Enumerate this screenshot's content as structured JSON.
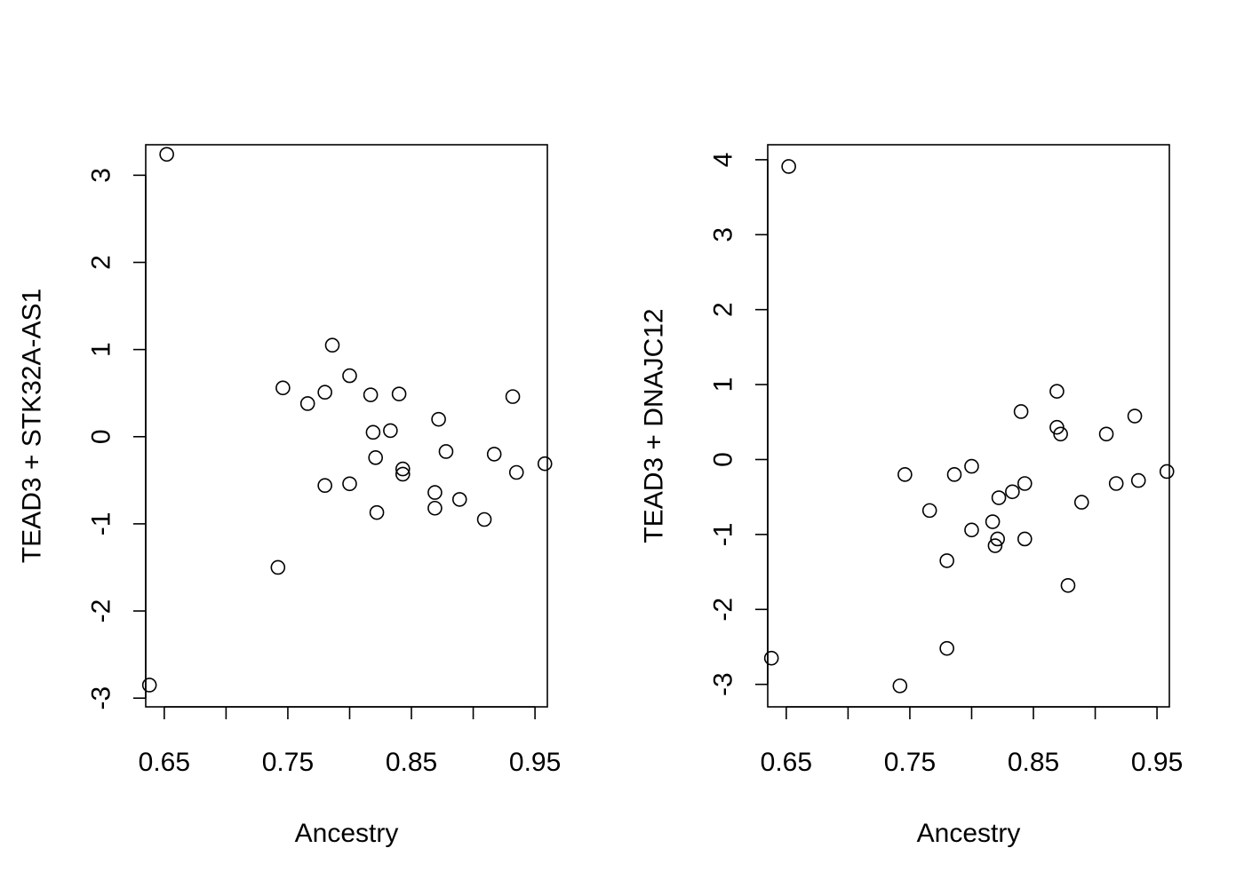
{
  "chart_data": [
    {
      "type": "scatter",
      "title": "",
      "xlabel": "Ancestry",
      "ylabel": "TEAD3 + STK32A-AS1",
      "xlim": [
        0.635,
        0.96
      ],
      "ylim": [
        -3.1,
        3.35
      ],
      "xticks": [
        0.65,
        0.7,
        0.75,
        0.8,
        0.85,
        0.9,
        0.95
      ],
      "xtick_labels": [
        "0.65",
        "",
        "0.75",
        "",
        "0.85",
        "",
        "0.95"
      ],
      "yticks": [
        -3,
        -2,
        -1,
        0,
        1,
        2,
        3
      ],
      "ytick_labels": [
        "-3",
        "-2",
        "-1",
        "0",
        "1",
        "2",
        "3"
      ],
      "grid": false,
      "points": [
        {
          "x": 0.638,
          "y": -2.85
        },
        {
          "x": 0.652,
          "y": 3.24
        },
        {
          "x": 0.742,
          "y": -1.5
        },
        {
          "x": 0.746,
          "y": 0.56
        },
        {
          "x": 0.766,
          "y": 0.38
        },
        {
          "x": 0.78,
          "y": 0.51
        },
        {
          "x": 0.78,
          "y": -0.56
        },
        {
          "x": 0.786,
          "y": 1.05
        },
        {
          "x": 0.8,
          "y": 0.7
        },
        {
          "x": 0.8,
          "y": -0.54
        },
        {
          "x": 0.817,
          "y": 0.48
        },
        {
          "x": 0.819,
          "y": 0.05
        },
        {
          "x": 0.821,
          "y": -0.24
        },
        {
          "x": 0.822,
          "y": -0.87
        },
        {
          "x": 0.833,
          "y": 0.07
        },
        {
          "x": 0.84,
          "y": 0.49
        },
        {
          "x": 0.843,
          "y": -0.37
        },
        {
          "x": 0.843,
          "y": -0.43
        },
        {
          "x": 0.869,
          "y": -0.64
        },
        {
          "x": 0.869,
          "y": -0.82
        },
        {
          "x": 0.872,
          "y": 0.2
        },
        {
          "x": 0.878,
          "y": -0.17
        },
        {
          "x": 0.889,
          "y": -0.72
        },
        {
          "x": 0.909,
          "y": -0.95
        },
        {
          "x": 0.917,
          "y": -0.2
        },
        {
          "x": 0.932,
          "y": 0.46
        },
        {
          "x": 0.935,
          "y": -0.41
        },
        {
          "x": 0.958,
          "y": -0.31
        }
      ]
    },
    {
      "type": "scatter",
      "title": "",
      "xlabel": "Ancestry",
      "ylabel": "TEAD3 + DNAJC12",
      "xlim": [
        0.635,
        0.96
      ],
      "ylim": [
        -3.3,
        4.2
      ],
      "xticks": [
        0.65,
        0.7,
        0.75,
        0.8,
        0.85,
        0.9,
        0.95
      ],
      "xtick_labels": [
        "0.65",
        "",
        "0.75",
        "",
        "0.85",
        "",
        "0.95"
      ],
      "yticks": [
        -3,
        -2,
        -1,
        0,
        1,
        2,
        3,
        4
      ],
      "ytick_labels": [
        "-3",
        "-2",
        "-1",
        "0",
        "1",
        "2",
        "3",
        "4"
      ],
      "grid": false,
      "points": [
        {
          "x": 0.638,
          "y": -2.65
        },
        {
          "x": 0.652,
          "y": 3.91
        },
        {
          "x": 0.742,
          "y": -3.02
        },
        {
          "x": 0.746,
          "y": -0.2
        },
        {
          "x": 0.766,
          "y": -0.68
        },
        {
          "x": 0.78,
          "y": -2.52
        },
        {
          "x": 0.78,
          "y": -1.35
        },
        {
          "x": 0.786,
          "y": -0.2
        },
        {
          "x": 0.8,
          "y": -0.09
        },
        {
          "x": 0.8,
          "y": -0.94
        },
        {
          "x": 0.817,
          "y": -0.83
        },
        {
          "x": 0.819,
          "y": -1.15
        },
        {
          "x": 0.821,
          "y": -1.06
        },
        {
          "x": 0.822,
          "y": -0.51
        },
        {
          "x": 0.833,
          "y": -0.43
        },
        {
          "x": 0.84,
          "y": 0.64
        },
        {
          "x": 0.843,
          "y": -0.32
        },
        {
          "x": 0.843,
          "y": -1.06
        },
        {
          "x": 0.869,
          "y": 0.91
        },
        {
          "x": 0.869,
          "y": 0.43
        },
        {
          "x": 0.872,
          "y": 0.34
        },
        {
          "x": 0.878,
          "y": -1.68
        },
        {
          "x": 0.889,
          "y": -0.57
        },
        {
          "x": 0.909,
          "y": 0.34
        },
        {
          "x": 0.917,
          "y": -0.32
        },
        {
          "x": 0.932,
          "y": 0.58
        },
        {
          "x": 0.935,
          "y": -0.28
        },
        {
          "x": 0.958,
          "y": -0.16
        }
      ]
    }
  ]
}
